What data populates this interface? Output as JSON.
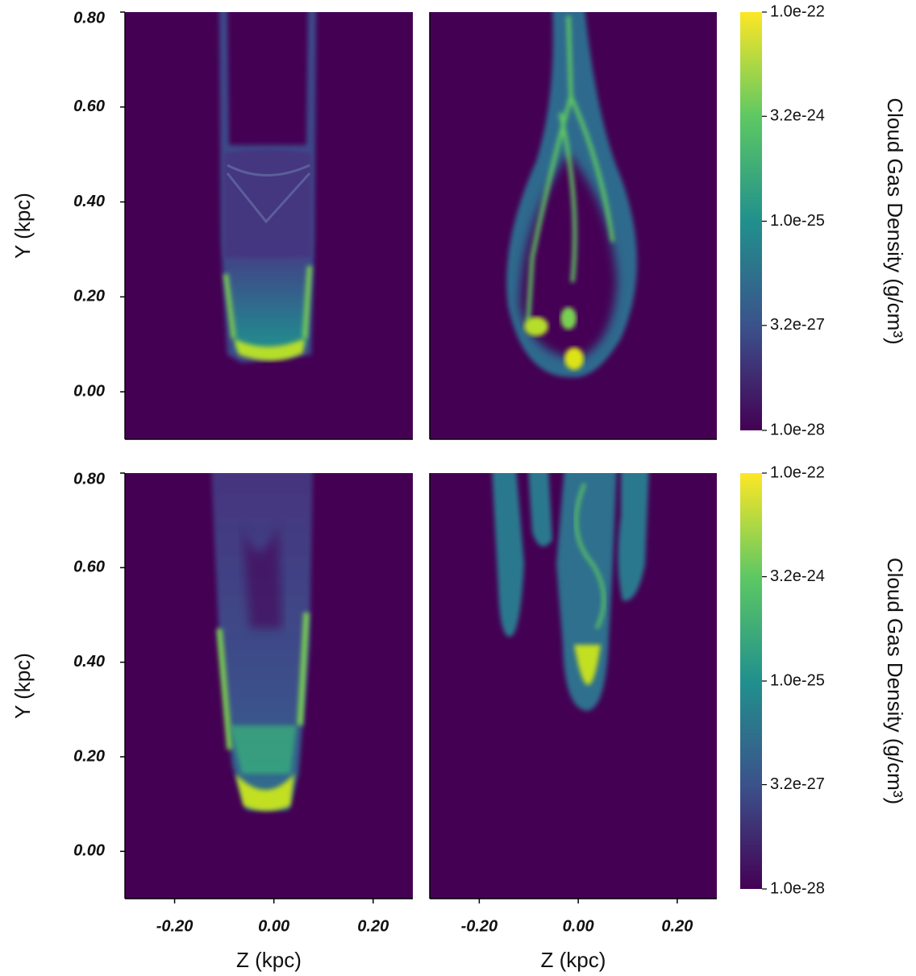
{
  "chart_data": [
    {
      "type": "density-map",
      "xlim": [
        -0.3,
        0.28
      ],
      "ylim": [
        -0.1,
        0.8
      ],
      "ylabel": "Y (kpc)",
      "yticks": [
        {
          "value": 0.8,
          "label": "0.80"
        },
        {
          "value": 0.6,
          "label": "0.60"
        },
        {
          "value": 0.4,
          "label": "0.40"
        },
        {
          "value": 0.2,
          "label": "0.20"
        },
        {
          "value": 0,
          "label": "0.00"
        }
      ]
    },
    {
      "type": "density-map",
      "xlim": [
        -0.3,
        0.28
      ],
      "ylim": [
        -0.1,
        0.8
      ]
    },
    {
      "type": "colorbar",
      "log": true,
      "clim": [
        1e-28,
        1e-22
      ],
      "label": "Cloud Gas Density  (g/cm³)",
      "colormap": [
        "#440154",
        "#3b528b",
        "#21908d",
        "#5dc863",
        "#fde725"
      ],
      "ticks": [
        {
          "value": 1e-22,
          "label": "1.0e-22"
        },
        {
          "value": 3.2e-24,
          "label": "3.2e-24"
        },
        {
          "value": 1e-25,
          "label": "1.0e-25"
        },
        {
          "value": 3.2e-27,
          "label": "3.2e-27"
        },
        {
          "value": 1e-28,
          "label": "1.0e-28"
        }
      ]
    },
    {
      "type": "density-map",
      "xlim": [
        -0.3,
        0.28
      ],
      "ylim": [
        -0.1,
        0.8
      ],
      "ylabel": "Y (kpc)",
      "xlabel": "Z (kpc)",
      "yticks": [
        {
          "value": 0.8,
          "label": "0.80"
        },
        {
          "value": 0.6,
          "label": "0.60"
        },
        {
          "value": 0.4,
          "label": "0.40"
        },
        {
          "value": 0.2,
          "label": "0.20"
        },
        {
          "value": 0,
          "label": "0.00"
        }
      ],
      "xticks": [
        {
          "value": -0.2,
          "label": "-0.20"
        },
        {
          "value": 0,
          "label": "0.00"
        },
        {
          "value": 0.2,
          "label": "0.20"
        }
      ]
    },
    {
      "type": "density-map",
      "xlim": [
        -0.3,
        0.28
      ],
      "ylim": [
        -0.1,
        0.8
      ],
      "xlabel": "Z (kpc)",
      "xticks": [
        {
          "value": -0.2,
          "label": "-0.20"
        },
        {
          "value": 0,
          "label": "0.00"
        },
        {
          "value": 0.2,
          "label": "0.20"
        }
      ]
    },
    {
      "type": "colorbar",
      "log": true,
      "clim": [
        1e-28,
        1e-22
      ],
      "label": "Cloud Gas Density  (g/cm³)",
      "colormap": [
        "#440154",
        "#3b528b",
        "#21908d",
        "#5dc863",
        "#fde725"
      ],
      "ticks": [
        {
          "value": 1e-22,
          "label": "1.0e-22"
        },
        {
          "value": 3.2e-24,
          "label": "3.2e-24"
        },
        {
          "value": 1e-25,
          "label": "1.0e-25"
        },
        {
          "value": 3.2e-27,
          "label": "3.2e-27"
        },
        {
          "value": 1e-28,
          "label": "1.0e-28"
        }
      ]
    }
  ]
}
